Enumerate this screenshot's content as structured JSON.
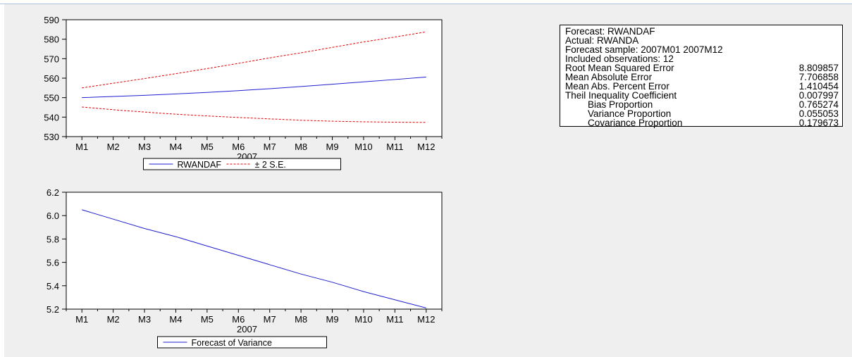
{
  "colors": {
    "forecast": "#1f1fd0",
    "band": "#e00000",
    "panel_bg": "#efefef",
    "plot_bg": "#ffffff"
  },
  "chart_data": [
    {
      "type": "line",
      "x": [
        "M1",
        "M2",
        "M3",
        "M4",
        "M5",
        "M6",
        "M7",
        "M8",
        "M9",
        "M10",
        "M11",
        "M12"
      ],
      "x_caption": "2007",
      "ylim": [
        530,
        590
      ],
      "yticks": [
        530,
        540,
        550,
        560,
        570,
        580,
        590
      ],
      "grid": false,
      "legend_position": "bottom-center",
      "series": [
        {
          "name": "RWANDAF",
          "style": "solid",
          "color": "#1f1fd0",
          "values": [
            550.0,
            550.6,
            551.2,
            551.9,
            552.7,
            553.6,
            554.6,
            555.7,
            556.9,
            558.1,
            559.3,
            560.6
          ]
        },
        {
          "name": "± 2 S.E.",
          "style": "dashed",
          "color": "#e00000",
          "values": [
            555.0,
            557.4,
            559.8,
            562.3,
            564.9,
            567.6,
            570.4,
            573.0,
            575.8,
            578.6,
            581.1,
            583.8
          ]
        },
        {
          "name": "",
          "style": "dashed",
          "color": "#e00000",
          "values": [
            545.2,
            543.8,
            542.6,
            541.5,
            540.6,
            539.8,
            539.1,
            538.4,
            537.9,
            537.6,
            537.4,
            537.3
          ]
        }
      ]
    },
    {
      "type": "line",
      "x": [
        "M1",
        "M2",
        "M3",
        "M4",
        "M5",
        "M6",
        "M7",
        "M8",
        "M9",
        "M10",
        "M11",
        "M12"
      ],
      "x_caption": "2007",
      "ylim": [
        5.2,
        6.2
      ],
      "yticks": [
        "5.2",
        "5.4",
        "5.6",
        "5.8",
        "6.0",
        "6.2"
      ],
      "grid": false,
      "legend_position": "bottom-center",
      "series": [
        {
          "name": "Forecast of Variance",
          "style": "solid",
          "color": "#1f1fd0",
          "values": [
            6.05,
            5.97,
            5.89,
            5.82,
            5.74,
            5.66,
            5.58,
            5.5,
            5.43,
            5.35,
            5.28,
            5.21
          ]
        }
      ]
    }
  ],
  "stats": {
    "title_lines": [
      "Forecast: RWANDAF",
      "Actual: RWANDA",
      "Forecast sample: 2007M01 2007M12",
      "Included observations: 12"
    ],
    "rows": [
      {
        "label": "Root Mean Squared Error",
        "value": "8.809857",
        "indent": false
      },
      {
        "label": "Mean Absolute Error",
        "value": "7.706858",
        "indent": false
      },
      {
        "label": "Mean Abs. Percent Error",
        "value": "1.410454",
        "indent": false
      },
      {
        "label": "Theil Inequality Coefficient",
        "value": "0.007997",
        "indent": false
      },
      {
        "label": "Bias Proportion",
        "value": "0.765274",
        "indent": true
      },
      {
        "label": "Variance Proportion",
        "value": "0.055053",
        "indent": true
      },
      {
        "label": "Covariance Proportion",
        "value": "0.179673",
        "indent": true
      }
    ]
  }
}
